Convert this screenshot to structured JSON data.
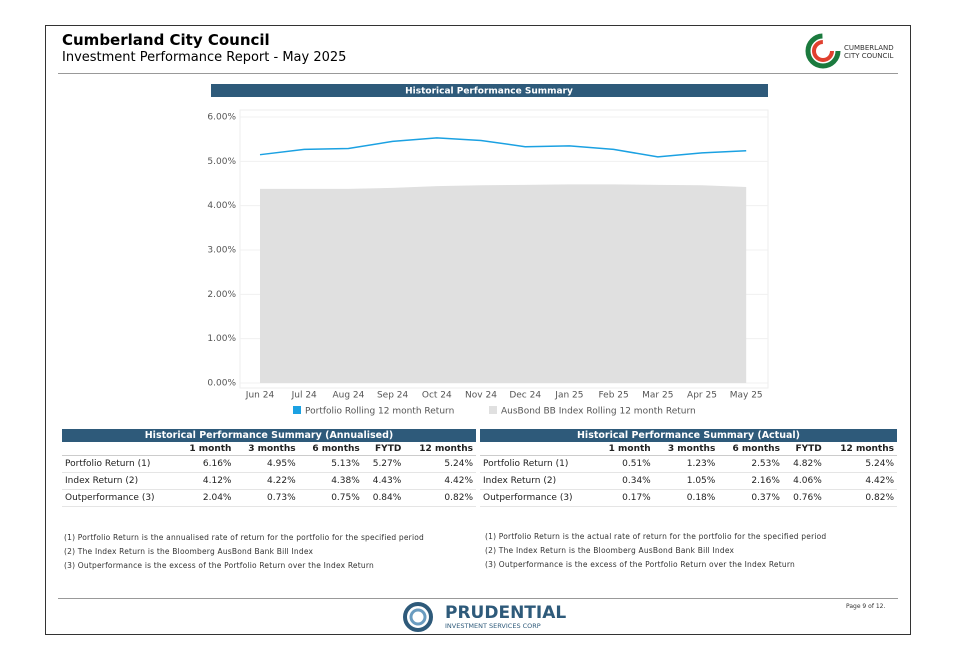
{
  "header": {
    "title": "Cumberland City Council",
    "subtitle": "Investment Performance Report - May 2025",
    "logo_line1": "CUMBERLAND",
    "logo_line2": "CITY COUNCIL"
  },
  "chart_data": {
    "type": "line-area",
    "title": "Historical Performance Summary",
    "categories": [
      "Jun 24",
      "Jul 24",
      "Aug 24",
      "Sep 24",
      "Oct 24",
      "Nov 24",
      "Dec 24",
      "Jan 25",
      "Feb 25",
      "Mar 25",
      "Apr 25",
      "May 25"
    ],
    "series": [
      {
        "name": "Portfolio Rolling 12 month Return",
        "color": "#1ba1e2",
        "values": [
          5.15,
          5.27,
          5.29,
          5.45,
          5.53,
          5.47,
          5.33,
          5.35,
          5.27,
          5.1,
          5.19,
          5.24
        ]
      },
      {
        "name": "AusBond BB Index Rolling 12 month Return",
        "color": "#e0e0e0",
        "values": [
          4.38,
          4.38,
          4.38,
          4.4,
          4.44,
          4.46,
          4.47,
          4.48,
          4.48,
          4.47,
          4.46,
          4.42
        ]
      }
    ],
    "ylim": [
      0,
      6
    ],
    "yticks": [
      {
        "value": 0,
        "label": "0.00%"
      },
      {
        "value": 1,
        "label": "1.00%"
      },
      {
        "value": 2,
        "label": "2.00%"
      },
      {
        "value": 3,
        "label": "3.00%"
      },
      {
        "value": 4,
        "label": "4.00%"
      },
      {
        "value": 5,
        "label": "5.00%"
      },
      {
        "value": 6,
        "label": "6.00%"
      }
    ],
    "grid": true
  },
  "tables": [
    {
      "title": "Historical Performance Summary (Annualised)",
      "columns": [
        "1 month",
        "3 months",
        "6 months",
        "FYTD",
        "12 months"
      ],
      "rows": [
        {
          "label": "Portfolio Return (1)",
          "cells": [
            "6.16%",
            "4.95%",
            "5.13%",
            "5.27%",
            "5.24%"
          ]
        },
        {
          "label": "Index Return (2)",
          "cells": [
            "4.12%",
            "4.22%",
            "4.38%",
            "4.43%",
            "4.42%"
          ]
        },
        {
          "label": "Outperformance (3)",
          "cells": [
            "2.04%",
            "0.73%",
            "0.75%",
            "0.84%",
            "0.82%"
          ]
        }
      ],
      "notes": [
        "(1) Portfolio Return is the annualised rate of return for the portfolio for the specified period",
        "(2) The Index Return is the Bloomberg AusBond Bank Bill Index",
        "(3) Outperformance is the excess of the Portfolio Return over the Index Return"
      ]
    },
    {
      "title": "Historical Performance Summary (Actual)",
      "columns": [
        "1 month",
        "3 months",
        "6 months",
        "FYTD",
        "12 months"
      ],
      "rows": [
        {
          "label": "Portfolio Return (1)",
          "cells": [
            "0.51%",
            "1.23%",
            "2.53%",
            "4.82%",
            "5.24%"
          ]
        },
        {
          "label": "Index Return (2)",
          "cells": [
            "0.34%",
            "1.05%",
            "2.16%",
            "4.06%",
            "4.42%"
          ]
        },
        {
          "label": "Outperformance (3)",
          "cells": [
            "0.17%",
            "0.18%",
            "0.37%",
            "0.76%",
            "0.82%"
          ]
        }
      ],
      "notes": [
        "(1) Portfolio Return is the actual rate of return for the portfolio for the specified period",
        "(2) The Index Return is the Bloomberg AusBond Bank Bill Index",
        "(3) Outperformance is the excess of the Portfolio Return over the Index Return"
      ]
    }
  ],
  "footer": {
    "brand": "PRUDENTIAL",
    "brand_sub": "INVESTMENT SERVICES CORP",
    "page": "Page 9 of 12."
  }
}
